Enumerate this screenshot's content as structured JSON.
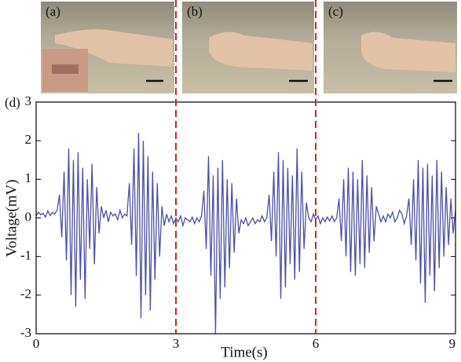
{
  "photos": {
    "labels": [
      "(a)",
      "(b)",
      "(c)"
    ]
  },
  "chart_data": {
    "type": "line",
    "panel_label": "(d)",
    "xlabel": "Time(s)",
    "ylabel": "Voltage(mV)",
    "color": "#4b4fa8",
    "xlim": [
      0,
      9
    ],
    "xticks": [
      0,
      3,
      6,
      9
    ],
    "ylim": [
      -3,
      3
    ],
    "yticks": [
      -3,
      -2,
      -1,
      0,
      1,
      2,
      3
    ],
    "markers": {
      "x": [
        3,
        6
      ],
      "color": "#e02020"
    },
    "x": [
      0,
      0.05,
      0.1,
      0.15,
      0.2,
      0.25,
      0.3,
      0.35,
      0.4,
      0.45,
      0.5,
      0.55,
      0.6,
      0.65,
      0.7,
      0.75,
      0.8,
      0.85,
      0.9,
      0.95,
      1,
      1.05,
      1.1,
      1.15,
      1.2,
      1.25,
      1.3,
      1.35,
      1.4,
      1.45,
      1.5,
      1.55,
      1.6,
      1.65,
      1.7,
      1.75,
      1.8,
      1.85,
      1.9,
      1.95,
      2,
      2.05,
      2.1,
      2.15,
      2.2,
      2.25,
      2.3,
      2.35,
      2.4,
      2.45,
      2.5,
      2.55,
      2.6,
      2.65,
      2.7,
      2.75,
      2.8,
      2.85,
      2.9,
      2.95,
      3,
      3.05,
      3.1,
      3.15,
      3.2,
      3.25,
      3.3,
      3.35,
      3.4,
      3.45,
      3.5,
      3.55,
      3.6,
      3.65,
      3.7,
      3.75,
      3.8,
      3.85,
      3.9,
      3.95,
      4,
      4.05,
      4.1,
      4.15,
      4.2,
      4.25,
      4.3,
      4.35,
      4.4,
      4.45,
      4.5,
      4.55,
      4.6,
      4.65,
      4.7,
      4.75,
      4.8,
      4.85,
      4.9,
      4.95,
      5,
      5.05,
      5.1,
      5.15,
      5.2,
      5.25,
      5.3,
      5.35,
      5.4,
      5.45,
      5.5,
      5.55,
      5.6,
      5.65,
      5.7,
      5.75,
      5.8,
      5.85,
      5.9,
      5.95,
      6,
      6.05,
      6.1,
      6.15,
      6.2,
      6.25,
      6.3,
      6.35,
      6.4,
      6.45,
      6.5,
      6.55,
      6.6,
      6.65,
      6.7,
      6.75,
      6.8,
      6.85,
      6.9,
      6.95,
      7,
      7.05,
      7.1,
      7.15,
      7.2,
      7.25,
      7.3,
      7.35,
      7.4,
      7.45,
      7.5,
      7.55,
      7.6,
      7.65,
      7.7,
      7.75,
      7.8,
      7.85,
      7.9,
      7.95,
      8,
      8.05,
      8.1,
      8.15,
      8.2,
      8.25,
      8.3,
      8.35,
      8.4,
      8.45,
      8.5,
      8.55,
      8.6,
      8.65,
      8.7,
      8.75,
      8.8,
      8.85,
      8.9,
      8.95,
      9
    ],
    "values": [
      0.05,
      0.15,
      0.08,
      0.12,
      0.02,
      0.18,
      0.06,
      0.14,
      0.1,
      0.2,
      0.6,
      -0.5,
      1.2,
      -1.1,
      1.8,
      -2.0,
      1.5,
      -2.3,
      1.7,
      -1.6,
      1.3,
      -2.1,
      1.0,
      -0.8,
      1.4,
      -1.2,
      0.8,
      -0.4,
      0.3,
      0.0,
      0.2,
      -0.1,
      0.15,
      0.05,
      0.1,
      -0.05,
      0.2,
      0.0,
      0.1,
      0.05,
      0.9,
      -0.7,
      1.8,
      -1.5,
      2.2,
      -2.6,
      2.0,
      -2.0,
      1.6,
      -2.4,
      1.2,
      -1.6,
      0.9,
      -1.0,
      0.3,
      -0.2,
      0.1,
      -0.1,
      0.05,
      -0.15,
      0.0,
      -0.1,
      0.05,
      -0.2,
      0.0,
      -0.05,
      -0.1,
      0.02,
      -0.15,
      0.0,
      -0.1,
      0.05,
      0.7,
      -0.8,
      1.6,
      -1.5,
      1.1,
      -3.0,
      1.3,
      -2.1,
      1.5,
      -1.8,
      1.0,
      -1.3,
      0.9,
      -0.9,
      0.5,
      -0.4,
      -0.05,
      -0.15,
      0.0,
      -0.2,
      -0.1,
      0.0,
      -0.15,
      -0.05,
      -0.1,
      0.05,
      -0.1,
      0.0,
      0.6,
      -0.6,
      1.2,
      -1.0,
      1.7,
      -2.1,
      1.5,
      -1.8,
      1.3,
      -1.2,
      1.1,
      -1.6,
      1.8,
      -1.4,
      1.2,
      -0.8,
      0.4,
      0.0,
      -0.1,
      0.1,
      -0.05,
      0.05,
      -0.15,
      0.0,
      -0.1,
      0.02,
      -0.08,
      0.05,
      -0.1,
      0.0,
      0.5,
      -0.6,
      1.0,
      -1.0,
      1.3,
      -1.4,
      1.2,
      -1.5,
      1.0,
      -1.2,
      1.5,
      -1.3,
      1.1,
      -0.9,
      0.8,
      -0.6,
      0.3,
      0.1,
      -0.1,
      0.05,
      -0.1,
      0.1,
      0.0,
      0.15,
      -0.1,
      0.0,
      0.2,
      0.1,
      -0.15,
      0.05,
      0.5,
      -0.7,
      1.0,
      -1.1,
      1.5,
      -1.7,
      1.3,
      -2.2,
      1.4,
      -1.5,
      1.1,
      -1.9,
      1.5,
      -1.3,
      1.2,
      -1.0,
      0.8,
      -0.7,
      0.5,
      -0.4,
      0.2
    ]
  }
}
